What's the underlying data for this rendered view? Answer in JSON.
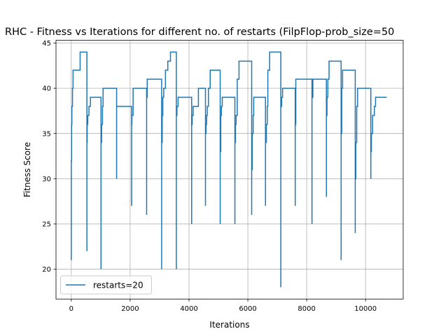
{
  "chart_data": {
    "type": "line",
    "title": "RHC - Fitness vs Iterations for different no. of restarts (FilpFlop-prob_size=50",
    "xlabel": "Iterations",
    "ylabel": "Fitness Score",
    "xlim": [
      -520,
      11280
    ],
    "ylim": [
      16.7,
      45.3
    ],
    "xticks": [
      0,
      2000,
      4000,
      6000,
      8000,
      10000
    ],
    "xtick_labels": [
      "0",
      "2000",
      "4000",
      "6000",
      "8000",
      "10000"
    ],
    "yticks": [
      20,
      25,
      30,
      35,
      40,
      45
    ],
    "ytick_labels": [
      "20",
      "25",
      "30",
      "35",
      "40",
      "45"
    ],
    "grid": true,
    "legend_position": "lower-left",
    "series": [
      {
        "name": "restarts=20",
        "color": "#1f77b4",
        "x": [
          0,
          0,
          10,
          20,
          40,
          60,
          80,
          90,
          110,
          300,
          300,
          530,
          530,
          540,
          560,
          600,
          650,
          1010,
          1010,
          1030,
          1060,
          1080,
          1100,
          1540,
          1540,
          1560,
          2050,
          2050,
          2060,
          2100,
          2130,
          2160,
          2560,
          2560,
          2580,
          2620,
          3070,
          3070,
          3090,
          3110,
          3140,
          3200,
          3280,
          3370,
          3380,
          3570,
          3570,
          3590,
          3610,
          3630,
          4090,
          4090,
          4110,
          4140,
          4200,
          4320,
          4560,
          4560,
          4580,
          4600,
          4620,
          4650,
          4660,
          4720,
          5060,
          5060,
          5080,
          5100,
          5130,
          5560,
          5560,
          5580,
          5600,
          5640,
          5700,
          6130,
          6130,
          6150,
          6180,
          6200,
          6240,
          6600,
          6600,
          6630,
          6660,
          6680,
          6740,
          7120,
          7120,
          7150,
          7180,
          7220,
          7610,
          7610,
          7630,
          7650,
          8180,
          8180,
          8210,
          8670,
          8670,
          8690,
          8720,
          8760,
          9170,
          9170,
          9190,
          9220,
          9260,
          9650,
          9650,
          9670,
          9700,
          9730,
          10180,
          10180,
          10200,
          10240,
          10300,
          10340,
          10720
        ],
        "y": [
          21,
          32,
          36,
          38,
          40,
          42,
          42,
          42,
          42,
          44,
          44,
          22,
          34,
          36,
          37,
          38,
          39,
          20,
          34,
          36,
          38,
          40,
          40,
          30,
          38,
          38,
          27,
          36,
          37,
          40,
          40,
          40,
          26,
          39,
          41,
          41,
          20,
          34,
          37,
          39,
          40,
          42,
          43,
          44,
          44,
          20,
          37,
          38,
          38,
          39,
          25,
          36,
          37,
          38,
          38,
          40,
          27,
          35,
          36,
          37,
          38,
          38,
          40,
          42,
          25,
          33,
          37,
          38,
          39,
          25,
          34,
          36,
          37,
          41,
          43,
          26,
          31,
          35,
          37,
          39,
          39,
          27,
          34,
          36,
          38,
          42,
          44,
          18,
          38,
          39,
          40,
          40,
          27,
          36,
          41,
          41,
          25,
          39,
          41,
          28,
          37,
          39,
          41,
          43,
          21,
          35,
          40,
          42,
          42,
          24,
          30,
          34,
          38,
          40,
          30,
          33,
          35,
          37,
          38,
          39,
          39
        ]
      }
    ]
  }
}
